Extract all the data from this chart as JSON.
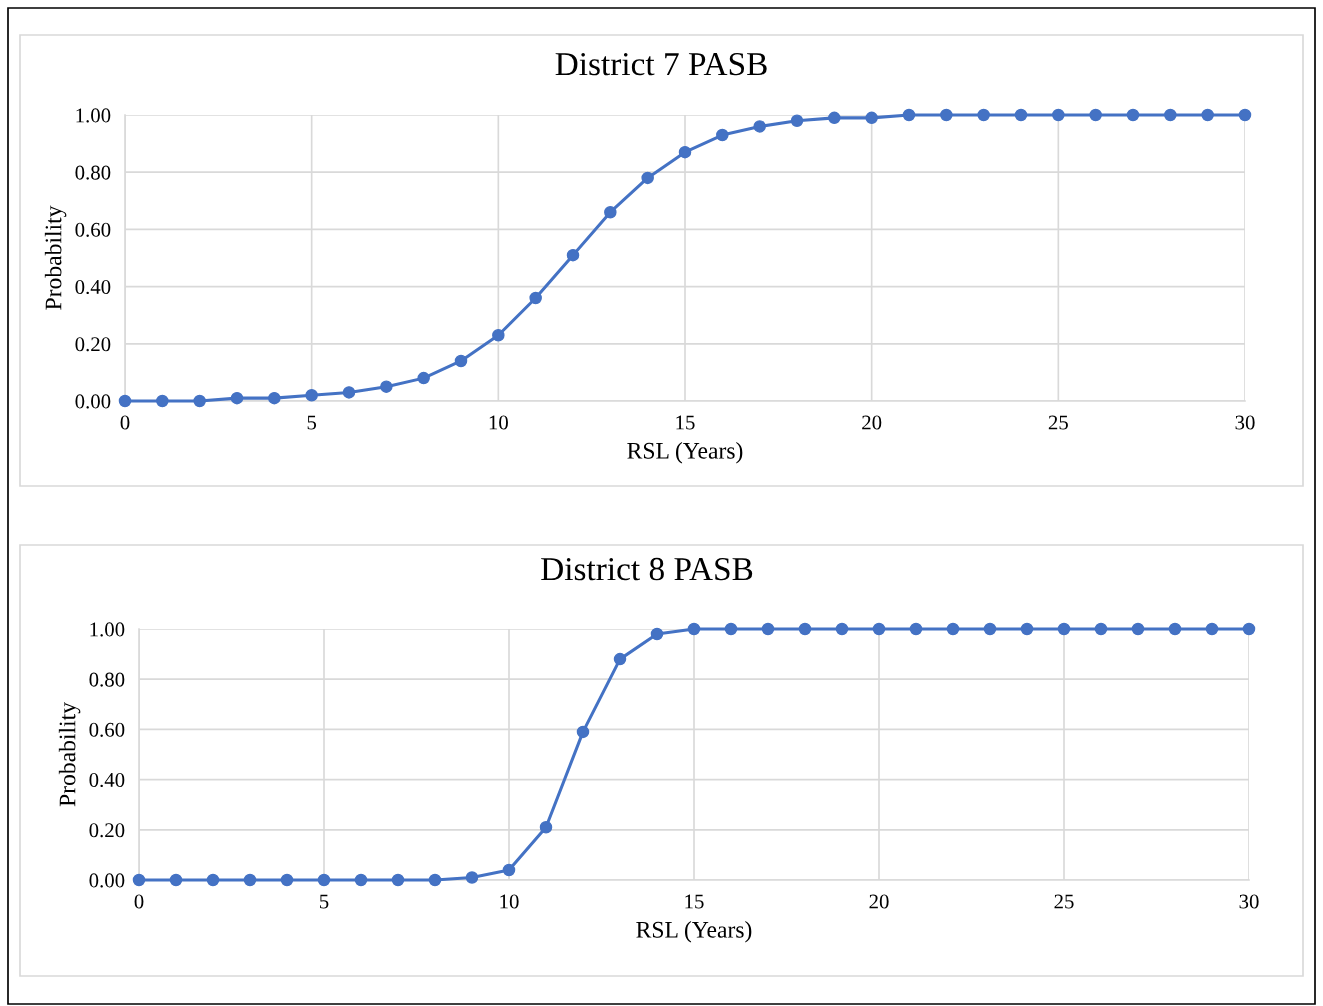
{
  "chart_data": [
    {
      "type": "line",
      "title": "District 7 PASB",
      "xlabel": "RSL (Years)",
      "ylabel": "Probability",
      "x": [
        0,
        1,
        2,
        3,
        4,
        5,
        6,
        7,
        8,
        9,
        10,
        11,
        12,
        13,
        14,
        15,
        16,
        17,
        18,
        19,
        20,
        21,
        22,
        23,
        24,
        25,
        26,
        27,
        28,
        29,
        30
      ],
      "series": [
        {
          "color": "#4472c4",
          "values": [
            0.0,
            0.0,
            0.0,
            0.01,
            0.01,
            0.02,
            0.03,
            0.05,
            0.08,
            0.14,
            0.23,
            0.36,
            0.51,
            0.66,
            0.78,
            0.87,
            0.93,
            0.96,
            0.98,
            0.99,
            0.99,
            1.0,
            1.0,
            1.0,
            1.0,
            1.0,
            1.0,
            1.0,
            1.0,
            1.0,
            1.0
          ]
        }
      ],
      "xlim": [
        0,
        30
      ],
      "xticks": [
        0,
        5,
        10,
        15,
        20,
        25,
        30
      ],
      "ylim": [
        0,
        1
      ],
      "yticks": [
        {
          "value": 0,
          "label": "0.00"
        },
        {
          "value": 0.2,
          "label": "0.20"
        },
        {
          "value": 0.4,
          "label": "0.40"
        },
        {
          "value": 0.6,
          "label": "0.60"
        },
        {
          "value": 0.8,
          "label": "0.80"
        },
        {
          "value": 1,
          "label": "1.00"
        }
      ],
      "grid": true,
      "marker": "circle",
      "line_style": "solid",
      "legend": false
    },
    {
      "type": "line",
      "title": "District 8 PASB",
      "xlabel": "RSL (Years)",
      "ylabel": "Probability",
      "x": [
        0,
        1,
        2,
        3,
        4,
        5,
        6,
        7,
        8,
        9,
        10,
        11,
        12,
        13,
        14,
        15,
        16,
        17,
        18,
        19,
        20,
        21,
        22,
        23,
        24,
        25,
        26,
        27,
        28,
        29,
        30
      ],
      "series": [
        {
          "color": "#4472c4",
          "values": [
            0.0,
            0.0,
            0.0,
            0.0,
            0.0,
            0.0,
            0.0,
            0.0,
            0.0,
            0.01,
            0.04,
            0.21,
            0.59,
            0.88,
            0.98,
            1.0,
            1.0,
            1.0,
            1.0,
            1.0,
            1.0,
            1.0,
            1.0,
            1.0,
            1.0,
            1.0,
            1.0,
            1.0,
            1.0,
            1.0,
            1.0
          ]
        }
      ],
      "xlim": [
        0,
        30
      ],
      "xticks": [
        0,
        5,
        10,
        15,
        20,
        25,
        30
      ],
      "ylim": [
        0,
        1
      ],
      "yticks": [
        {
          "value": 0,
          "label": "0.00"
        },
        {
          "value": 0.2,
          "label": "0.20"
        },
        {
          "value": 0.4,
          "label": "0.40"
        },
        {
          "value": 0.6,
          "label": "0.60"
        },
        {
          "value": 0.8,
          "label": "0.80"
        },
        {
          "value": 1,
          "label": "1.00"
        }
      ],
      "grid": true,
      "marker": "circle",
      "line_style": "solid",
      "legend": false
    }
  ]
}
